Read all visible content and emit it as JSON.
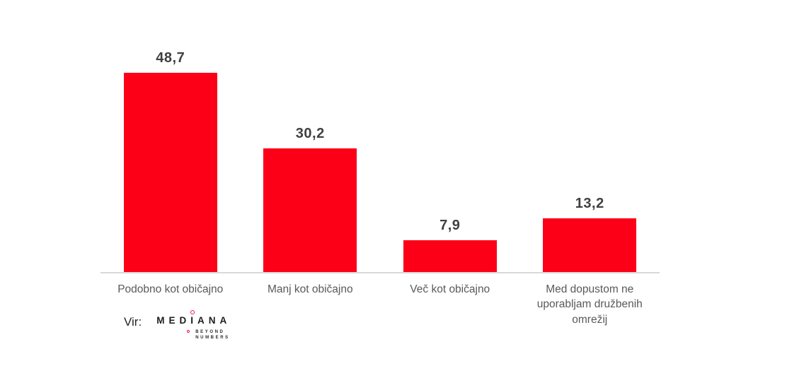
{
  "chart_data": {
    "type": "bar",
    "categories": [
      "Podobno kot običajno",
      "Manj kot običajno",
      "Več kot običajno",
      "Med dopustom ne uporabljam družbenih omrežij"
    ],
    "values": [
      48.7,
      30.2,
      7.9,
      13.2
    ],
    "value_labels": [
      "48,7",
      "30,2",
      "7,9",
      "13,2"
    ],
    "title": "",
    "xlabel": "",
    "ylabel": "",
    "ylim": [
      0,
      50
    ],
    "grid": false,
    "legend": "none",
    "bar_color": "#fc0018",
    "value_label_color": "#404040",
    "category_label_color": "#595959",
    "axis_line_color": "#d9d9d9"
  },
  "source": {
    "prefix": "Vir:",
    "logo_text": "MEDIANA",
    "tagline_line1": "BEYOND",
    "tagline_line2": "NUMBERS",
    "accent_color": "#ed1a4d"
  }
}
